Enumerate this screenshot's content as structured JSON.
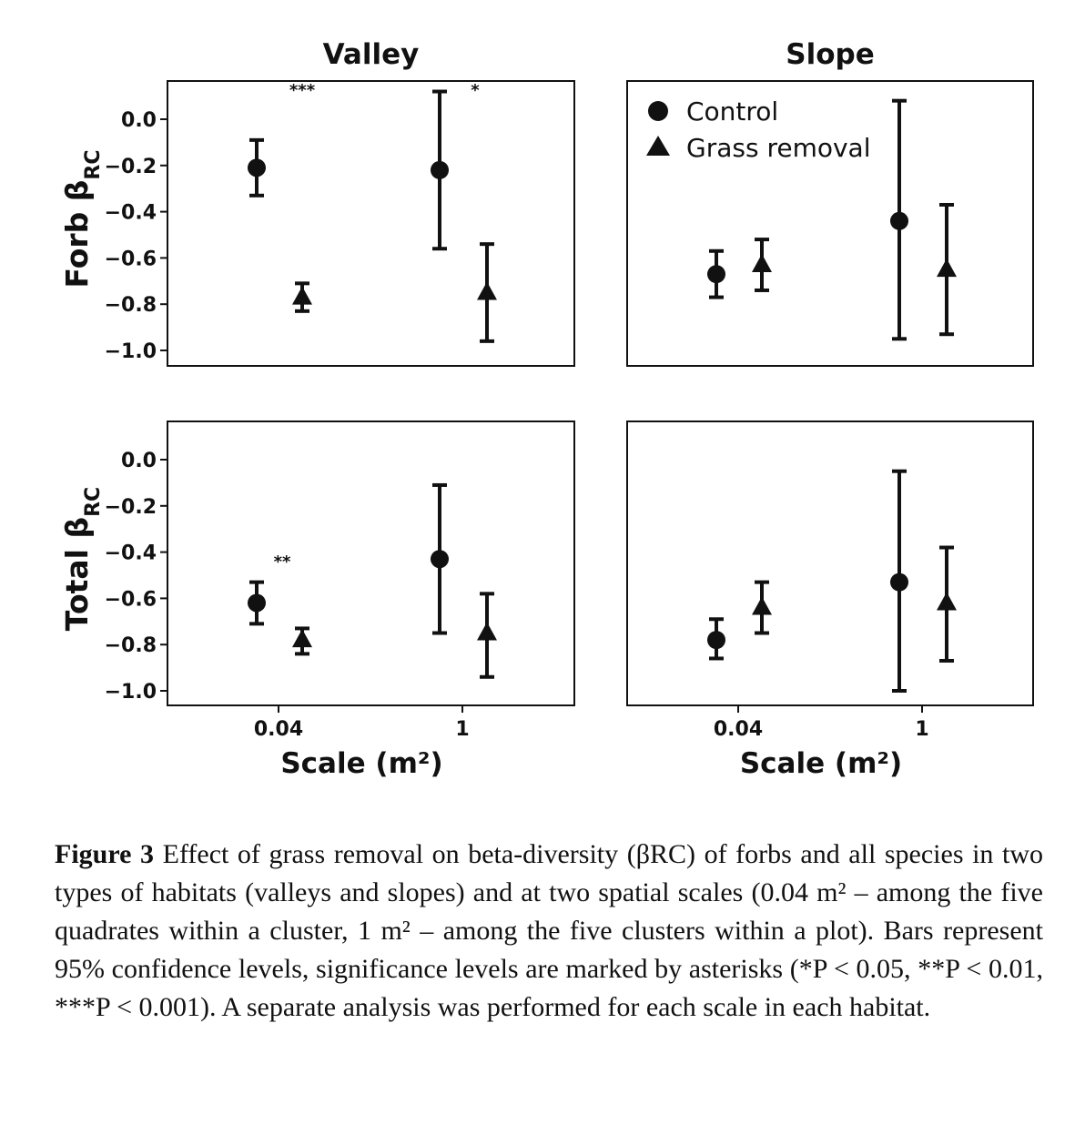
{
  "chart_data": [
    {
      "type": "scatter",
      "panel": "Valley / Forb",
      "title": "Valley",
      "ylabel": "Forb β",
      "ylabel_sub": "RC",
      "xlabel": "",
      "ylim": [
        -1.0,
        0.15
      ],
      "yticks": [
        "0.0",
        "−0.2",
        "−0.4",
        "−0.6",
        "−0.8",
        "−1.0"
      ],
      "xticks": [],
      "significance": [
        {
          "scale": "0.04",
          "label": "***"
        },
        {
          "scale": "1",
          "label": "*"
        }
      ],
      "series": [
        {
          "name": "Control",
          "marker": "circle",
          "x": [
            "0.04",
            "1"
          ],
          "y": [
            -0.21,
            -0.22
          ],
          "ci_low": [
            -0.33,
            -0.56
          ],
          "ci_high": [
            -0.09,
            0.12
          ]
        },
        {
          "name": "Grass removal",
          "marker": "triangle",
          "x": [
            "0.04",
            "1"
          ],
          "y": [
            -0.77,
            -0.75
          ],
          "ci_low": [
            -0.83,
            -0.96
          ],
          "ci_high": [
            -0.71,
            -0.54
          ]
        }
      ]
    },
    {
      "type": "scatter",
      "panel": "Slope / Forb",
      "title": "Slope",
      "ylim": [
        -1.0,
        0.15
      ],
      "yticks": [],
      "xticks": [],
      "legend_position": "top-left",
      "series": [
        {
          "name": "Control",
          "marker": "circle",
          "x": [
            "0.04",
            "1"
          ],
          "y": [
            -0.67,
            -0.44
          ],
          "ci_low": [
            -0.77,
            -0.95
          ],
          "ci_high": [
            -0.57,
            0.08
          ]
        },
        {
          "name": "Grass removal",
          "marker": "triangle",
          "x": [
            "0.04",
            "1"
          ],
          "y": [
            -0.63,
            -0.65
          ],
          "ci_low": [
            -0.74,
            -0.93
          ],
          "ci_high": [
            -0.52,
            -0.37
          ]
        }
      ]
    },
    {
      "type": "scatter",
      "panel": "Valley / Total",
      "ylabel": "Total β",
      "ylabel_sub": "RC",
      "xlabel": "Scale (m²)",
      "ylim": [
        -1.0,
        0.15
      ],
      "yticks": [
        "0.0",
        "−0.2",
        "−0.4",
        "−0.6",
        "−0.8",
        "−1.0"
      ],
      "xticks": [
        "0.04",
        "1"
      ],
      "significance": [
        {
          "scale": "0.04",
          "label": "**"
        }
      ],
      "series": [
        {
          "name": "Control",
          "marker": "circle",
          "x": [
            "0.04",
            "1"
          ],
          "y": [
            -0.62,
            -0.43
          ],
          "ci_low": [
            -0.71,
            -0.75
          ],
          "ci_high": [
            -0.53,
            -0.11
          ]
        },
        {
          "name": "Grass removal",
          "marker": "triangle",
          "x": [
            "0.04",
            "1"
          ],
          "y": [
            -0.78,
            -0.75
          ],
          "ci_low": [
            -0.84,
            -0.94
          ],
          "ci_high": [
            -0.73,
            -0.58
          ]
        }
      ]
    },
    {
      "type": "scatter",
      "panel": "Slope / Total",
      "xlabel": "Scale (m²)",
      "ylim": [
        -1.0,
        0.15
      ],
      "yticks": [],
      "xticks": [
        "0.04",
        "1"
      ],
      "series": [
        {
          "name": "Control",
          "marker": "circle",
          "x": [
            "0.04",
            "1"
          ],
          "y": [
            -0.78,
            -0.53
          ],
          "ci_low": [
            -0.86,
            -1.0
          ],
          "ci_high": [
            -0.69,
            -0.05
          ]
        },
        {
          "name": "Grass removal",
          "marker": "triangle",
          "x": [
            "0.04",
            "1"
          ],
          "y": [
            -0.64,
            -0.62
          ],
          "ci_low": [
            -0.75,
            -0.87
          ],
          "ci_high": [
            -0.53,
            -0.38
          ]
        }
      ]
    }
  ],
  "legend": {
    "items": [
      "Control",
      "Grass removal"
    ]
  },
  "caption": {
    "label": "Figure 3",
    "text": " Effect of grass removal on beta-diversity (βRC) of forbs and all species in two types of habitats (valleys and slopes) and at two spatial scales (0.04 m² – among the five quadrates within a cluster, 1 m² – among the five clusters within a plot). Bars represent 95% confidence levels, significance levels are marked by asterisks (*P < 0.05, **P < 0.01, ***P < 0.001). A separate analysis was performed for each scale in each habitat."
  },
  "colors": {
    "ink": "#111111",
    "background": "#ffffff"
  }
}
